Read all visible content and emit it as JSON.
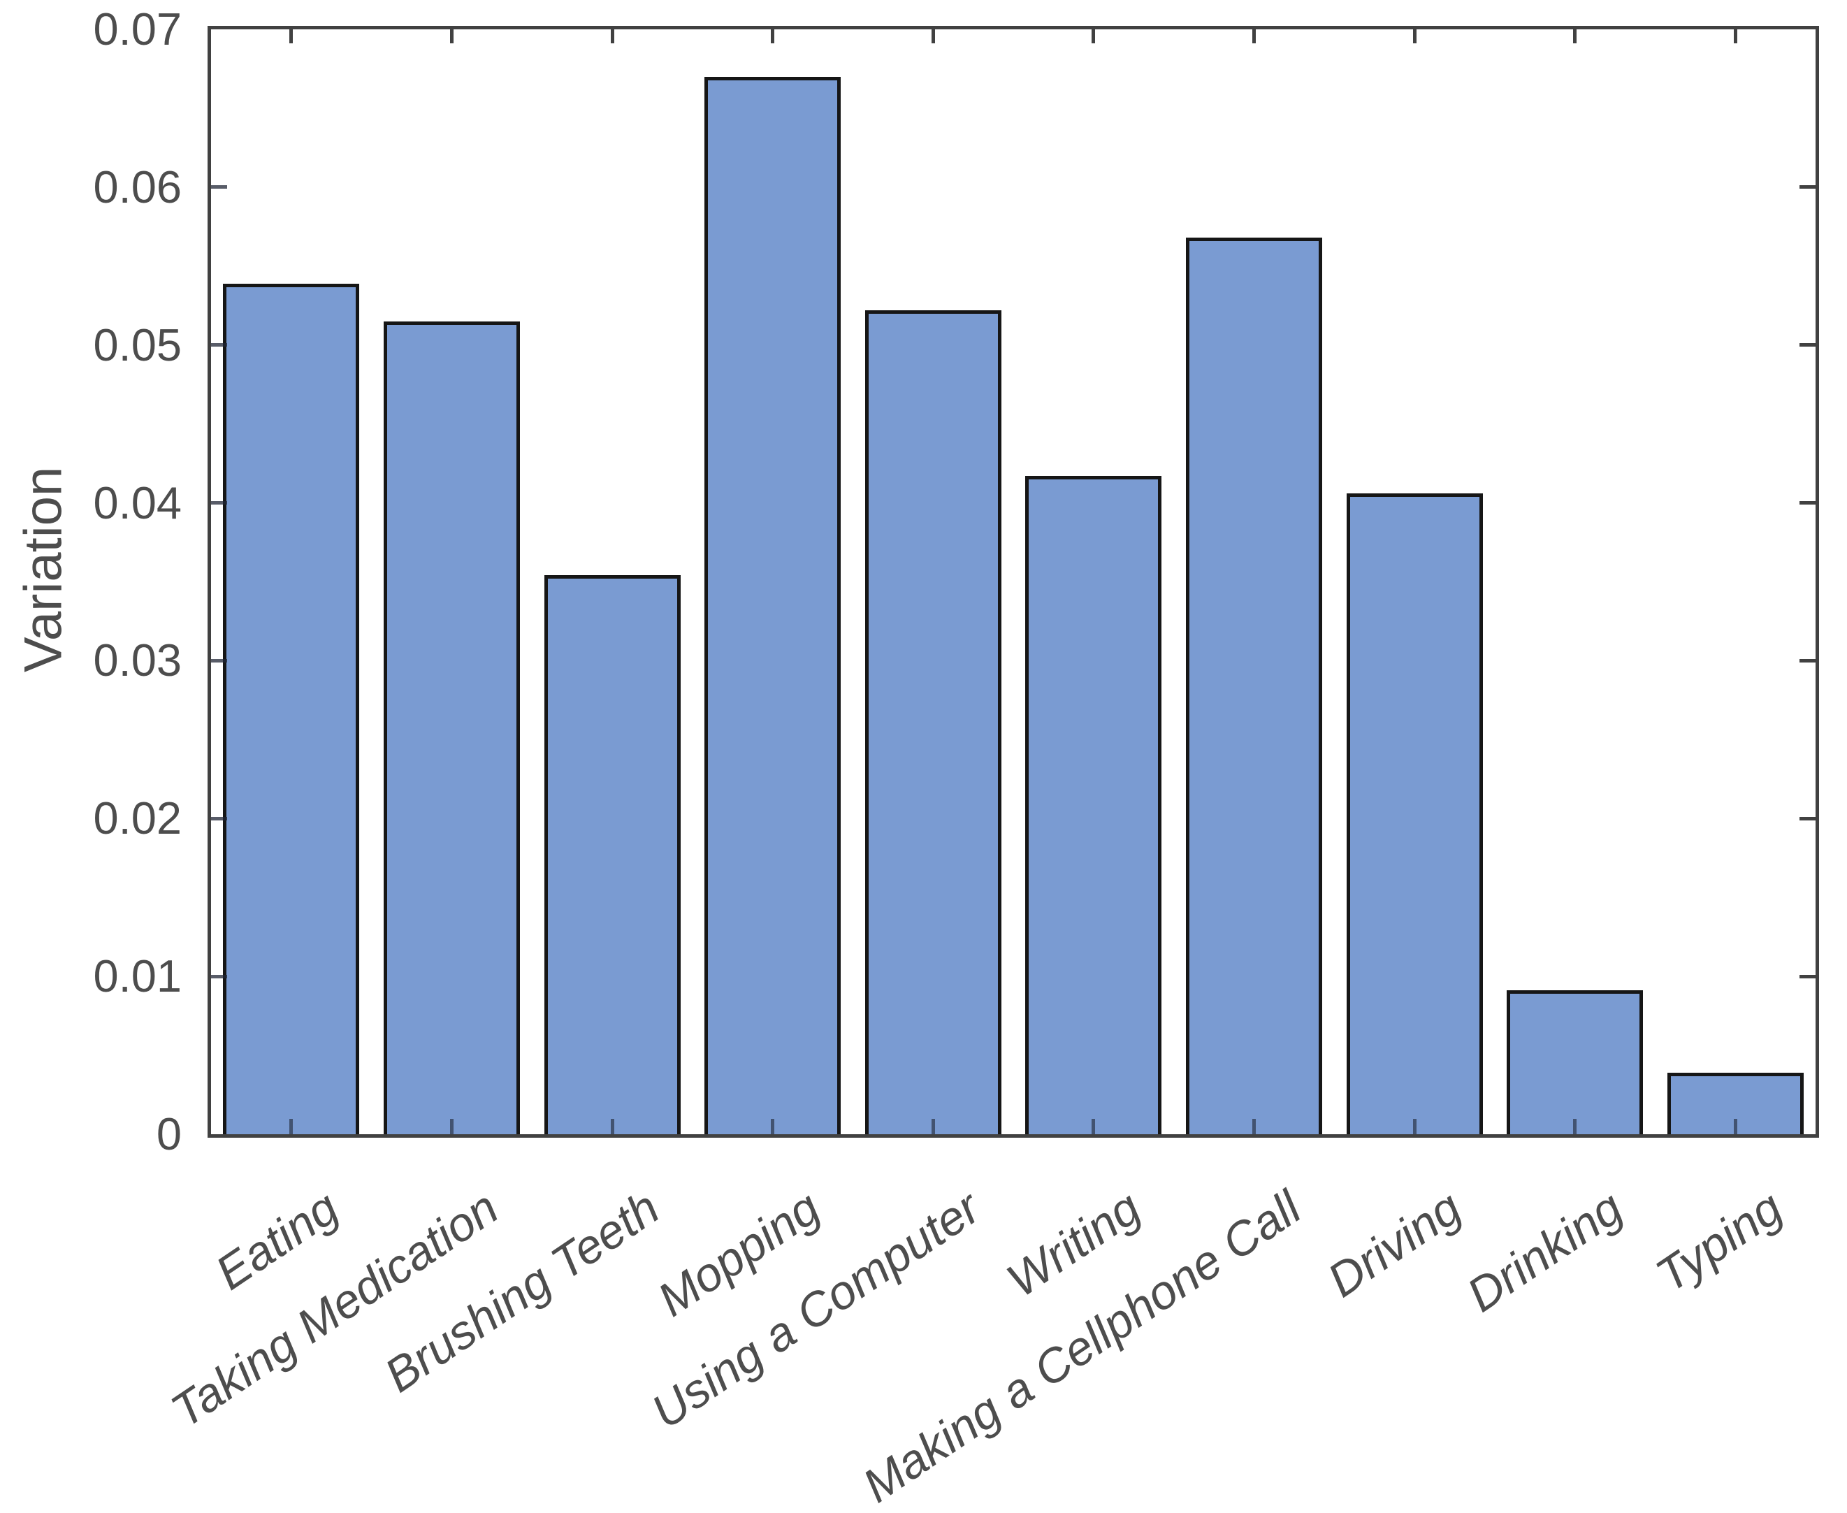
{
  "figure": {
    "background": "#ffffff",
    "title": ""
  },
  "chart_data": {
    "type": "bar",
    "title": "",
    "xlabel": "",
    "ylabel": "Variation",
    "categories": [
      "Eating",
      "Taking Medication",
      "Brushing Teeth",
      "Mopping",
      "Using a Computer",
      "Writing",
      "Making a Cellphone Call",
      "Driving",
      "Drinking",
      "Typing"
    ],
    "values": [
      0.0539,
      0.0515,
      0.0354,
      0.067,
      0.0522,
      0.0417,
      0.0568,
      0.0406,
      0.0091,
      0.0039
    ],
    "ylim": [
      0,
      0.07
    ],
    "y_ticks": [
      0,
      0.01,
      0.02,
      0.03,
      0.04,
      0.05,
      0.06,
      0.07
    ],
    "y_tick_labels": [
      "0",
      "0.01",
      "0.02",
      "0.03",
      "0.04",
      "0.05",
      "0.06",
      "0.07"
    ],
    "grid": false,
    "legend_position": "none",
    "x_tick_label_rotation_deg": 34,
    "x_tick_label_style": "italic",
    "colors": {
      "bar_fill": "#7a9bd2",
      "bar_edge": "#161616",
      "axis_frame": "#414141",
      "tick_over_bar": "rgba(32,38,54,0.62)",
      "tick_over_bar_left": "rgba(32,38,54,0.75)",
      "text": "#4d4d4d"
    }
  }
}
